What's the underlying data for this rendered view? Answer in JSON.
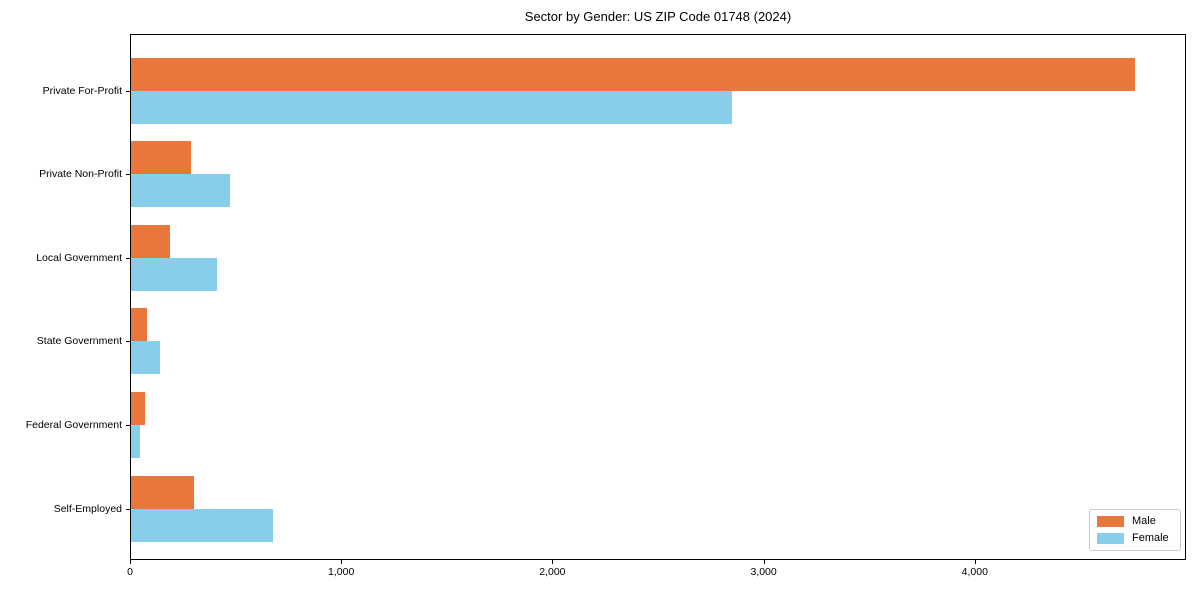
{
  "chart_data": {
    "type": "bar",
    "orientation": "horizontal",
    "title": "Sector by Gender: US ZIP Code 01748 (2024)",
    "categories": [
      "Private For-Profit",
      "Private Non-Profit",
      "Local Government",
      "State Government",
      "Federal Government",
      "Self-Employed"
    ],
    "series": [
      {
        "name": "Male",
        "color": "#e8773b",
        "values": [
          4760,
          290,
          190,
          80,
          70,
          305
        ]
      },
      {
        "name": "Female",
        "color": "#87ceeb",
        "values": [
          2850,
          475,
          410,
          140,
          45,
          675
        ]
      }
    ],
    "xlabel": "",
    "ylabel": "",
    "xlim": [
      0,
      5000
    ],
    "xticks": [
      0,
      1000,
      2000,
      3000,
      4000
    ],
    "xtick_labels": [
      "0",
      "1,000",
      "2,000",
      "3,000",
      "4,000"
    ],
    "grid": false,
    "legend": {
      "position": "lower-right",
      "entries": [
        "Male",
        "Female"
      ]
    },
    "colors": {
      "male": "#e8773b",
      "female": "#87ceeb",
      "spine": "#000000",
      "legend_border": "#c9c9c9"
    }
  }
}
